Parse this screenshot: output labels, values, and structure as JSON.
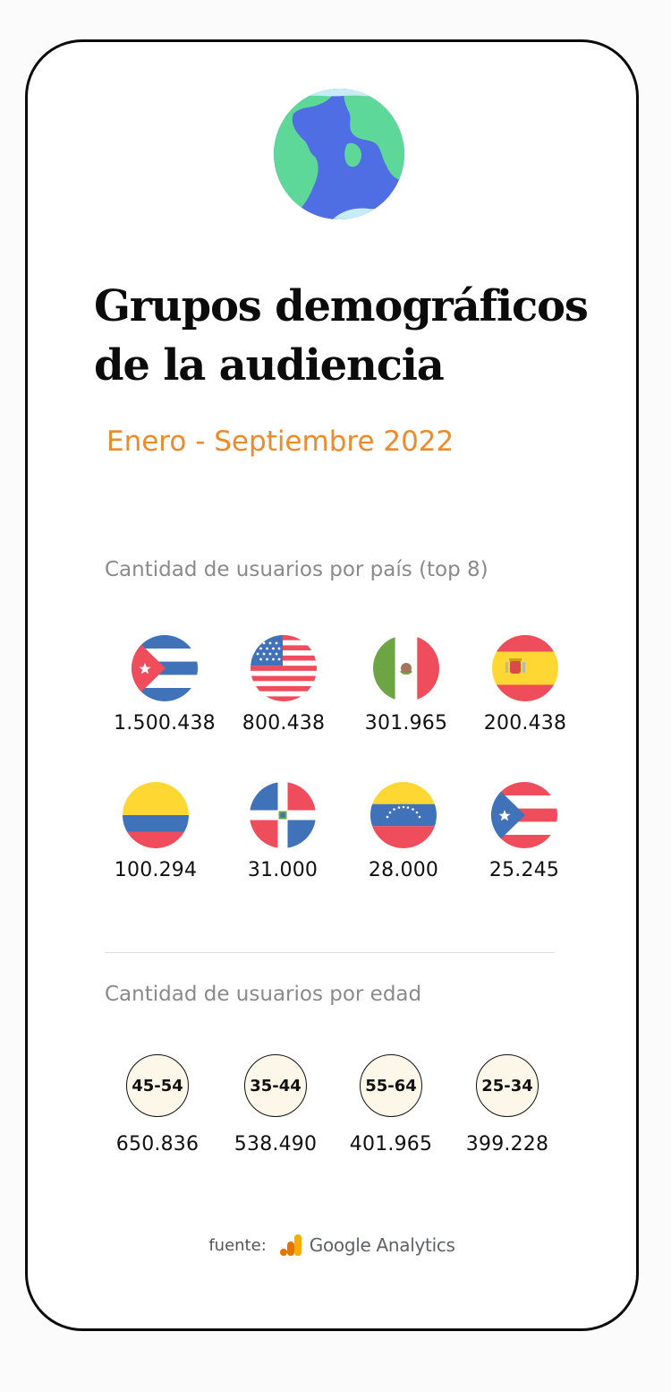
{
  "title_lines": [
    "Grupos demográficos",
    "de la audiencia"
  ],
  "period": "Enero - Septiembre 2022",
  "countries_section": {
    "label": "Cantidad de usuarios por país (top 8)",
    "items": [
      {
        "flag": "cuba-flag-icon",
        "value": "1.500.438"
      },
      {
        "flag": "usa-flag-icon",
        "value": "800.438"
      },
      {
        "flag": "mexico-flag-icon",
        "value": "301.965"
      },
      {
        "flag": "spain-flag-icon",
        "value": "200.438"
      },
      {
        "flag": "colombia-flag-icon",
        "value": "100.294"
      },
      {
        "flag": "dominican-republic-flag-icon",
        "value": "31.000"
      },
      {
        "flag": "venezuela-flag-icon",
        "value": "28.000"
      },
      {
        "flag": "puerto-rico-flag-icon",
        "value": "25.245"
      }
    ]
  },
  "age_section": {
    "label": "Cantidad de usuarios por edad",
    "items": [
      {
        "range": "45-54",
        "value": "650.836"
      },
      {
        "range": "35-44",
        "value": "538.490"
      },
      {
        "range": "55-64",
        "value": "401.965"
      },
      {
        "range": "25-34",
        "value": "399.228"
      }
    ]
  },
  "source": {
    "label": "fuente:",
    "brand": "Google Analytics",
    "icon": "google-analytics-logo-icon"
  },
  "colors": {
    "accent": "#ef8a2a",
    "border": "#0b0b0b",
    "age_fill": "#fdf7e9",
    "flag_red": "#ef4d5b",
    "flag_blue": "#3f72b8",
    "flag_yellow": "#ffd733"
  }
}
